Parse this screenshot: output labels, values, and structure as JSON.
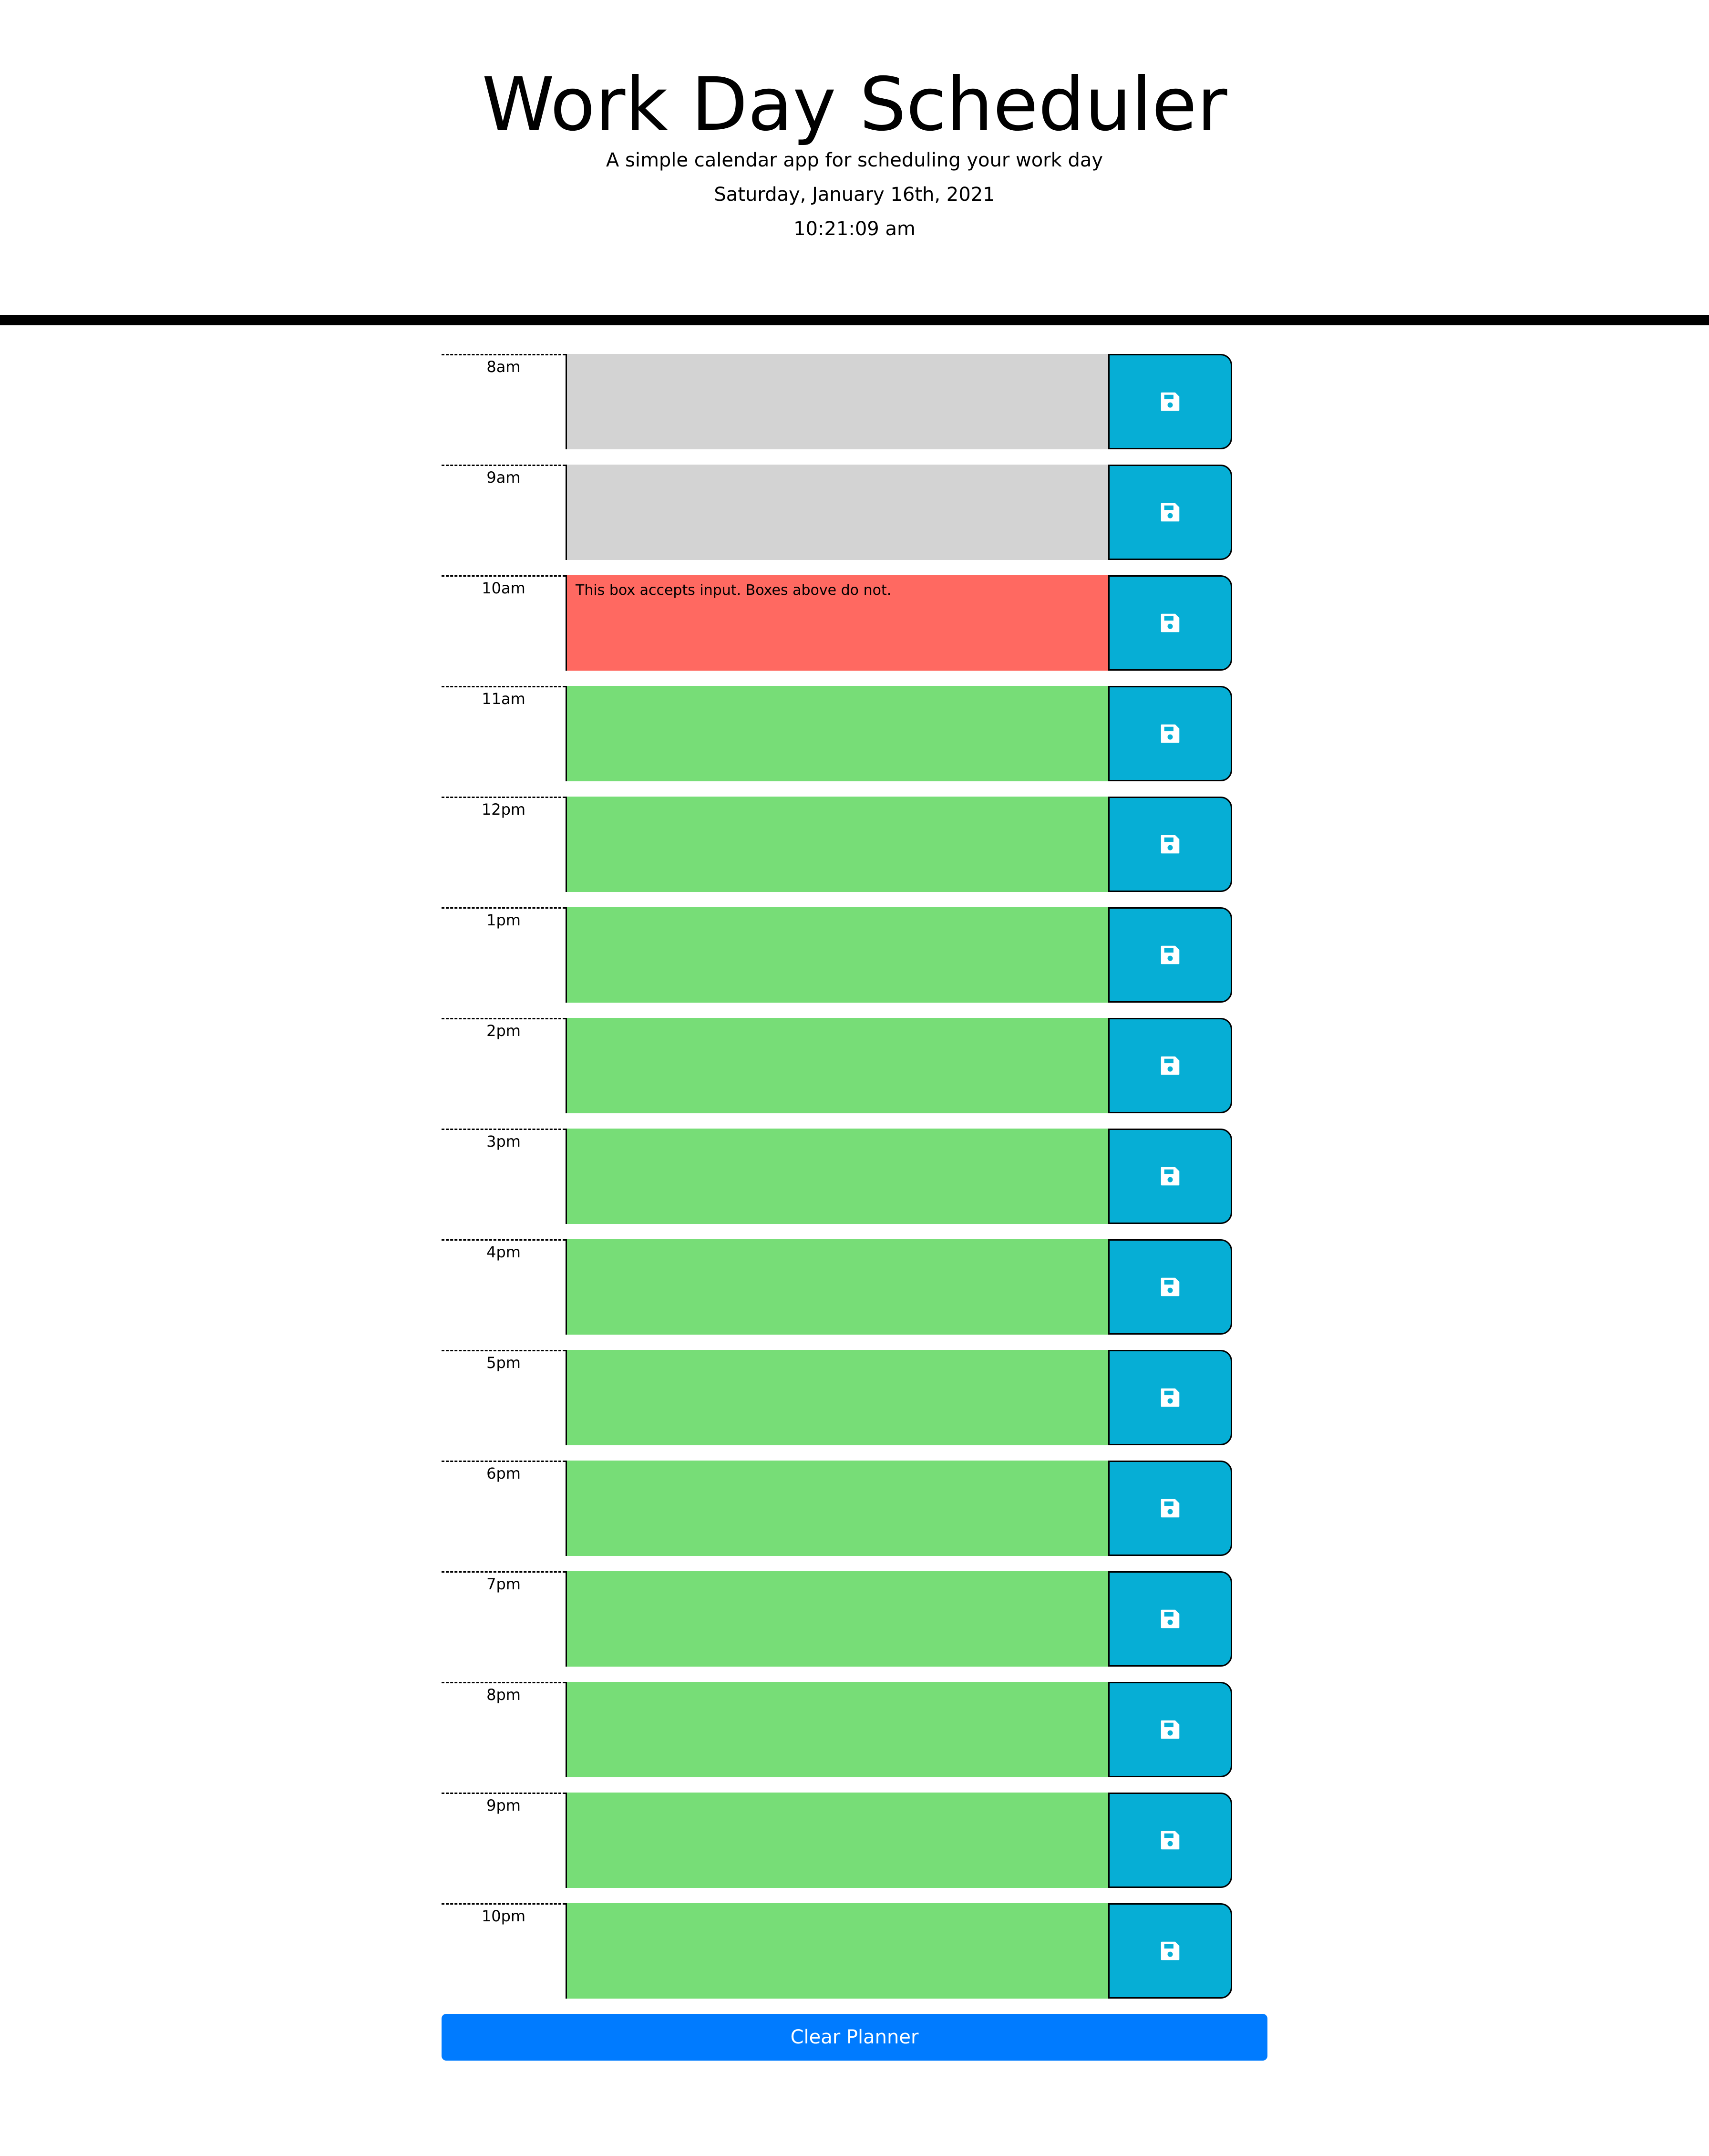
{
  "header": {
    "title": "Work Day Scheduler",
    "subtitle": "A simple calendar app for scheduling your work day",
    "date": "Saturday, January 16th, 2021",
    "time": "10:21:09 am"
  },
  "colors": {
    "past": "#d3d3d3",
    "present": "#ff6961",
    "future": "#77dd77",
    "save_button": "#06aed5",
    "clear_button": "#007bff"
  },
  "rows": [
    {
      "hour": "8am",
      "state": "past",
      "text": "",
      "icon": "floppy-disk-icon"
    },
    {
      "hour": "9am",
      "state": "past",
      "text": "",
      "icon": "floppy-disk-icon"
    },
    {
      "hour": "10am",
      "state": "present",
      "text": "This box accepts input. Boxes above do not.",
      "icon": "floppy-disk-icon"
    },
    {
      "hour": "11am",
      "state": "future",
      "text": "",
      "icon": "floppy-disk-icon"
    },
    {
      "hour": "12pm",
      "state": "future",
      "text": "",
      "icon": "floppy-disk-icon"
    },
    {
      "hour": "1pm",
      "state": "future",
      "text": "",
      "icon": "floppy-disk-icon"
    },
    {
      "hour": "2pm",
      "state": "future",
      "text": "",
      "icon": "floppy-disk-icon"
    },
    {
      "hour": "3pm",
      "state": "future",
      "text": "",
      "icon": "floppy-disk-icon"
    },
    {
      "hour": "4pm",
      "state": "future",
      "text": "",
      "icon": "floppy-disk-icon"
    },
    {
      "hour": "5pm",
      "state": "future",
      "text": "",
      "icon": "floppy-disk-icon"
    },
    {
      "hour": "6pm",
      "state": "future",
      "text": "",
      "icon": "floppy-disk-icon"
    },
    {
      "hour": "7pm",
      "state": "future",
      "text": "",
      "icon": "floppy-disk-icon"
    },
    {
      "hour": "8pm",
      "state": "future",
      "text": "",
      "icon": "floppy-disk-icon"
    },
    {
      "hour": "9pm",
      "state": "future",
      "text": "",
      "icon": "floppy-disk-icon"
    },
    {
      "hour": "10pm",
      "state": "future",
      "text": "",
      "icon": "floppy-disk-icon"
    }
  ],
  "clear_button": {
    "label": "Clear Planner"
  }
}
